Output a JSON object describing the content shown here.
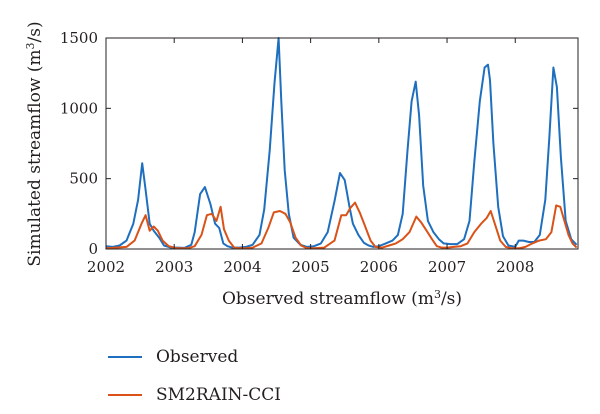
{
  "chart_data": {
    "type": "line",
    "xlabel": "Observed streamflow",
    "xlabel_unit": "(m³/s)",
    "ylabel": "Simulated streamflow",
    "ylabel_unit": "(m³/s)",
    "xlim": [
      2002,
      2008.92
    ],
    "ylim": [
      0,
      1500
    ],
    "x_ticks": [
      2002,
      2003,
      2004,
      2005,
      2006,
      2007,
      2008
    ],
    "y_ticks": [
      0,
      500,
      1000,
      1500
    ],
    "x_tick_labels": [
      "2002",
      "2003",
      "2004",
      "2005",
      "2006",
      "2007",
      "2008"
    ],
    "y_tick_labels": [
      "0",
      "500",
      "1000",
      "1500"
    ],
    "grid": false,
    "legend_position": "bottom",
    "series": [
      {
        "name": "Observed",
        "color": "#1f6fbf",
        "x": [
          2002.0,
          2002.1,
          2002.2,
          2002.3,
          2002.4,
          2002.47,
          2002.53,
          2002.58,
          2002.64,
          2002.7,
          2002.78,
          2002.85,
          2002.95,
          2003.05,
          2003.15,
          2003.25,
          2003.3,
          2003.38,
          2003.45,
          2003.53,
          2003.6,
          2003.66,
          2003.72,
          2003.78,
          2003.85,
          2003.95,
          2004.05,
          2004.15,
          2004.25,
          2004.32,
          2004.4,
          2004.47,
          2004.53,
          2004.57,
          2004.62,
          2004.68,
          2004.75,
          2004.85,
          2004.95,
          2005.05,
          2005.15,
          2005.25,
          2005.35,
          2005.43,
          2005.5,
          2005.57,
          2005.62,
          2005.7,
          2005.78,
          2005.85,
          2005.92,
          2006.0,
          2006.1,
          2006.2,
          2006.28,
          2006.35,
          2006.42,
          2006.48,
          2006.54,
          2006.59,
          2006.65,
          2006.72,
          2006.8,
          2006.88,
          2006.95,
          2007.05,
          2007.15,
          2007.25,
          2007.33,
          2007.4,
          2007.48,
          2007.55,
          2007.6,
          2007.63,
          2007.68,
          2007.75,
          2007.82,
          2007.9,
          2008.0,
          2008.05,
          2008.12,
          2008.2,
          2008.28,
          2008.36,
          2008.44,
          2008.5,
          2008.56,
          2008.61,
          2008.67,
          2008.74,
          2008.82,
          2008.9
        ],
        "values": [
          20,
          15,
          25,
          60,
          180,
          350,
          610,
          420,
          180,
          130,
          80,
          25,
          10,
          10,
          8,
          30,
          120,
          390,
          440,
          320,
          180,
          150,
          40,
          20,
          10,
          10,
          15,
          30,
          100,
          280,
          700,
          1180,
          1500,
          1050,
          560,
          250,
          80,
          30,
          15,
          20,
          40,
          120,
          340,
          540,
          490,
          300,
          180,
          100,
          45,
          25,
          15,
          20,
          40,
          60,
          100,
          250,
          700,
          1050,
          1190,
          950,
          450,
          200,
          120,
          70,
          40,
          35,
          35,
          70,
          200,
          620,
          1050,
          1290,
          1310,
          1200,
          750,
          300,
          90,
          25,
          15,
          60,
          60,
          50,
          50,
          100,
          350,
          800,
          1290,
          1150,
          650,
          200,
          70,
          30
        ]
      },
      {
        "name": "SM2RAIN-CCI",
        "color": "#d95319",
        "x": [
          2002.0,
          2002.15,
          2002.3,
          2002.42,
          2002.52,
          2002.58,
          2002.64,
          2002.7,
          2002.76,
          2002.83,
          2002.92,
          2003.05,
          2003.2,
          2003.3,
          2003.4,
          2003.48,
          2003.55,
          2003.62,
          2003.68,
          2003.73,
          2003.8,
          2003.88,
          2003.95,
          2004.05,
          2004.15,
          2004.28,
          2004.38,
          2004.46,
          2004.55,
          2004.63,
          2004.7,
          2004.78,
          2004.86,
          2004.95,
          2005.05,
          2005.2,
          2005.35,
          2005.45,
          2005.52,
          2005.58,
          2005.65,
          2005.72,
          2005.8,
          2005.88,
          2005.95,
          2006.05,
          2006.15,
          2006.25,
          2006.35,
          2006.45,
          2006.55,
          2006.62,
          2006.7,
          2006.78,
          2006.85,
          2006.92,
          2007.0,
          2007.1,
          2007.2,
          2007.3,
          2007.4,
          2007.5,
          2007.58,
          2007.64,
          2007.7,
          2007.78,
          2007.86,
          2007.95,
          2008.05,
          2008.15,
          2008.25,
          2008.35,
          2008.45,
          2008.53,
          2008.6,
          2008.66,
          2008.72,
          2008.78,
          2008.84,
          2008.9
        ],
        "values": [
          5,
          10,
          15,
          60,
          180,
          240,
          130,
          160,
          130,
          60,
          20,
          5,
          5,
          20,
          100,
          240,
          250,
          200,
          300,
          140,
          60,
          10,
          5,
          5,
          10,
          40,
          150,
          260,
          270,
          250,
          190,
          80,
          25,
          5,
          5,
          10,
          60,
          240,
          240,
          290,
          330,
          260,
          160,
          60,
          15,
          10,
          25,
          40,
          70,
          120,
          230,
          190,
          130,
          70,
          20,
          10,
          10,
          15,
          20,
          40,
          120,
          180,
          220,
          270,
          180,
          60,
          15,
          5,
          5,
          15,
          40,
          60,
          70,
          120,
          310,
          300,
          200,
          100,
          40,
          10
        ]
      }
    ]
  }
}
